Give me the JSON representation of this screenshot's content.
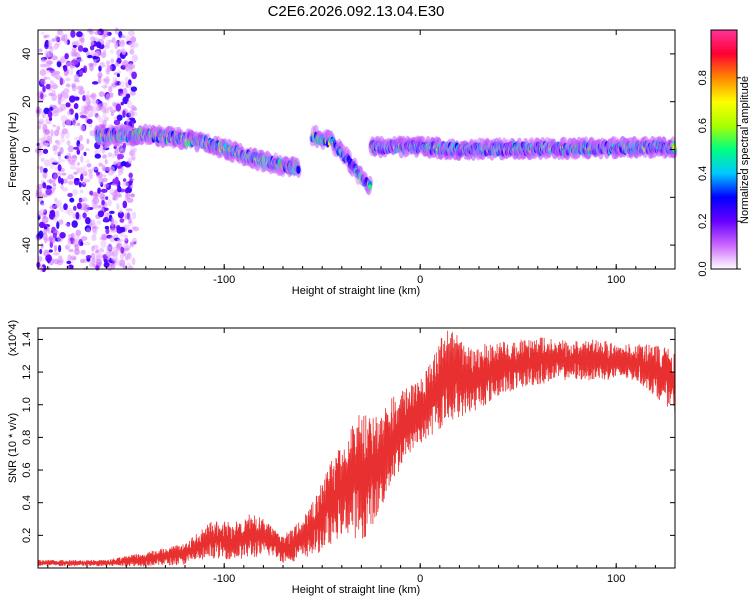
{
  "figure": {
    "title": "C2E6.2026.092.13.04.E30"
  },
  "chart_data": [
    {
      "type": "heatmap",
      "name": "spectrogram",
      "xlabel": "Height of straight line (km)",
      "ylabel": "Frequency (Hz)",
      "xlim": [
        -195,
        130
      ],
      "ylim": [
        -50,
        50
      ],
      "xticks": [
        -100,
        0,
        100
      ],
      "xtick_labels": [
        "-100",
        "0",
        "100"
      ],
      "yticks": [
        -40,
        -20,
        0,
        20,
        40
      ],
      "ytick_labels": [
        "-40",
        "-20",
        "0",
        "20",
        "40"
      ],
      "colorbar": {
        "label": "Normalized spectral amplitude",
        "range": [
          0,
          1
        ],
        "ticks": [
          0.0,
          0.2,
          0.4,
          0.6,
          0.8
        ],
        "tick_labels": [
          "0.0",
          "0.2",
          "0.4",
          "0.6",
          "0.8"
        ],
        "colormap": [
          "#ffffff",
          "#cc66ff",
          "#6600ff",
          "#0000ff",
          "#00c8ff",
          "#00ff80",
          "#aaff00",
          "#ffff00",
          "#ff8800",
          "#ff0033",
          "#ff3399"
        ]
      },
      "features": [
        {
          "kind": "noise",
          "x_range": [
            -195,
            -145
          ],
          "freq_range": [
            -50,
            50
          ],
          "amplitude": 0.2
        },
        {
          "kind": "band",
          "points": [
            [
              -165,
              6
            ],
            [
              -140,
              6
            ],
            [
              -125,
              5
            ],
            [
              -110,
              3
            ],
            [
              -95,
              -1
            ],
            [
              -80,
              -5
            ],
            [
              -62,
              -8
            ]
          ],
          "amplitude": 0.55
        },
        {
          "kind": "band",
          "points": [
            [
              -55,
              6
            ],
            [
              -45,
              3
            ],
            [
              -38,
              -3
            ],
            [
              -30,
              -12
            ],
            [
              -25,
              -16
            ]
          ],
          "amplitude": 0.5
        },
        {
          "kind": "band",
          "points": [
            [
              -25,
              1
            ],
            [
              0,
              1
            ],
            [
              20,
              0
            ],
            [
              130,
              1
            ]
          ],
          "amplitude": 0.45
        }
      ]
    },
    {
      "type": "line",
      "name": "snr",
      "xlabel": "Height of straight line (km)",
      "ylabel": "SNR (10 * v/v)",
      "y_multiplier_label": "(x10^4)",
      "xlim": [
        -195,
        130
      ],
      "ylim": [
        0,
        1.47
      ],
      "xticks": [
        -100,
        0,
        100
      ],
      "xtick_labels": [
        "-100",
        "0",
        "100"
      ],
      "yticks": [
        0.2,
        0.4,
        0.6,
        0.8,
        1.0,
        1.2,
        1.4
      ],
      "ytick_labels": [
        "0.2",
        "0.4",
        "0.6",
        "0.8",
        "1.0",
        "1.2",
        "1.4"
      ],
      "color": "#e83030",
      "envelope": {
        "x": [
          -195,
          -160,
          -140,
          -120,
          -110,
          -105,
          -95,
          -85,
          -80,
          -75,
          -70,
          -65,
          -60,
          -55,
          -50,
          -45,
          -40,
          -35,
          -30,
          -25,
          -20,
          -15,
          -10,
          -5,
          0,
          5,
          10,
          15,
          20,
          25,
          30,
          40,
          50,
          60,
          70,
          80,
          90,
          100,
          110,
          120,
          125,
          130
        ],
        "low": [
          0.01,
          0.01,
          0.01,
          0.02,
          0.05,
          0.06,
          0.05,
          0.06,
          0.07,
          0.07,
          0.03,
          0.04,
          0.05,
          0.08,
          0.1,
          0.15,
          0.2,
          0.2,
          0.15,
          0.25,
          0.35,
          0.5,
          0.6,
          0.7,
          0.75,
          0.8,
          0.85,
          0.9,
          0.92,
          0.95,
          0.97,
          1.05,
          1.1,
          1.12,
          1.15,
          1.15,
          1.15,
          1.15,
          1.15,
          1.05,
          1.0,
          0.95
        ],
        "high": [
          0.05,
          0.05,
          0.1,
          0.15,
          0.25,
          0.3,
          0.28,
          0.35,
          0.3,
          0.25,
          0.2,
          0.25,
          0.3,
          0.4,
          0.55,
          0.7,
          0.75,
          0.9,
          0.95,
          0.95,
          0.98,
          1.05,
          1.08,
          1.12,
          1.15,
          1.25,
          1.4,
          1.47,
          1.42,
          1.35,
          1.37,
          1.38,
          1.4,
          1.42,
          1.4,
          1.4,
          1.4,
          1.38,
          1.37,
          1.37,
          1.35,
          1.33
        ]
      }
    }
  ]
}
